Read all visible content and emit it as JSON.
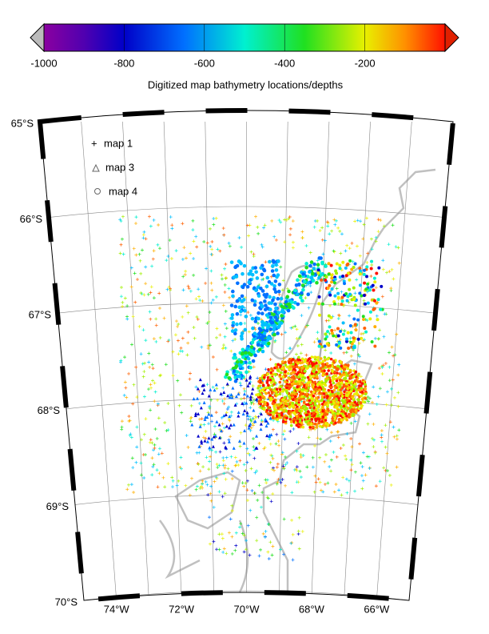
{
  "colorbar": {
    "range": [
      -1000,
      0
    ],
    "ticks": [
      -1000,
      -800,
      -600,
      -400,
      -200
    ],
    "label": "Digitized map bathymetry locations/depths"
  },
  "map": {
    "lat_labels": [
      "65°S",
      "66°S",
      "67°S",
      "68°S",
      "69°S",
      "70°S"
    ],
    "lon_labels": [
      "74°W",
      "72°W",
      "70°W",
      "68°W",
      "66°W"
    ],
    "legend": [
      "map 1",
      "map 3",
      "map 4"
    ]
  }
}
